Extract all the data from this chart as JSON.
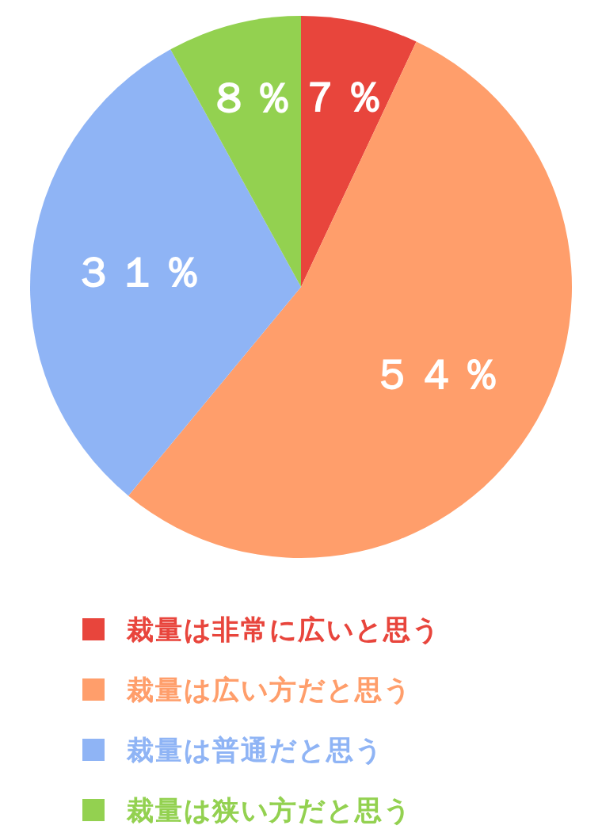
{
  "chart_data": {
    "type": "pie",
    "categories": [
      "裁量は非常に広いと思う",
      "裁量は広い方だと思う",
      "裁量は普通だと思う",
      "裁量は狭い方だと思う"
    ],
    "values": [
      7,
      54,
      31,
      8
    ],
    "colors": [
      "#e8453c",
      "#ff9e6b",
      "#8fb4f5",
      "#93d150"
    ],
    "value_labels": [
      "７％",
      "５４％",
      "３１％",
      "８％"
    ],
    "legend": "bottom"
  }
}
